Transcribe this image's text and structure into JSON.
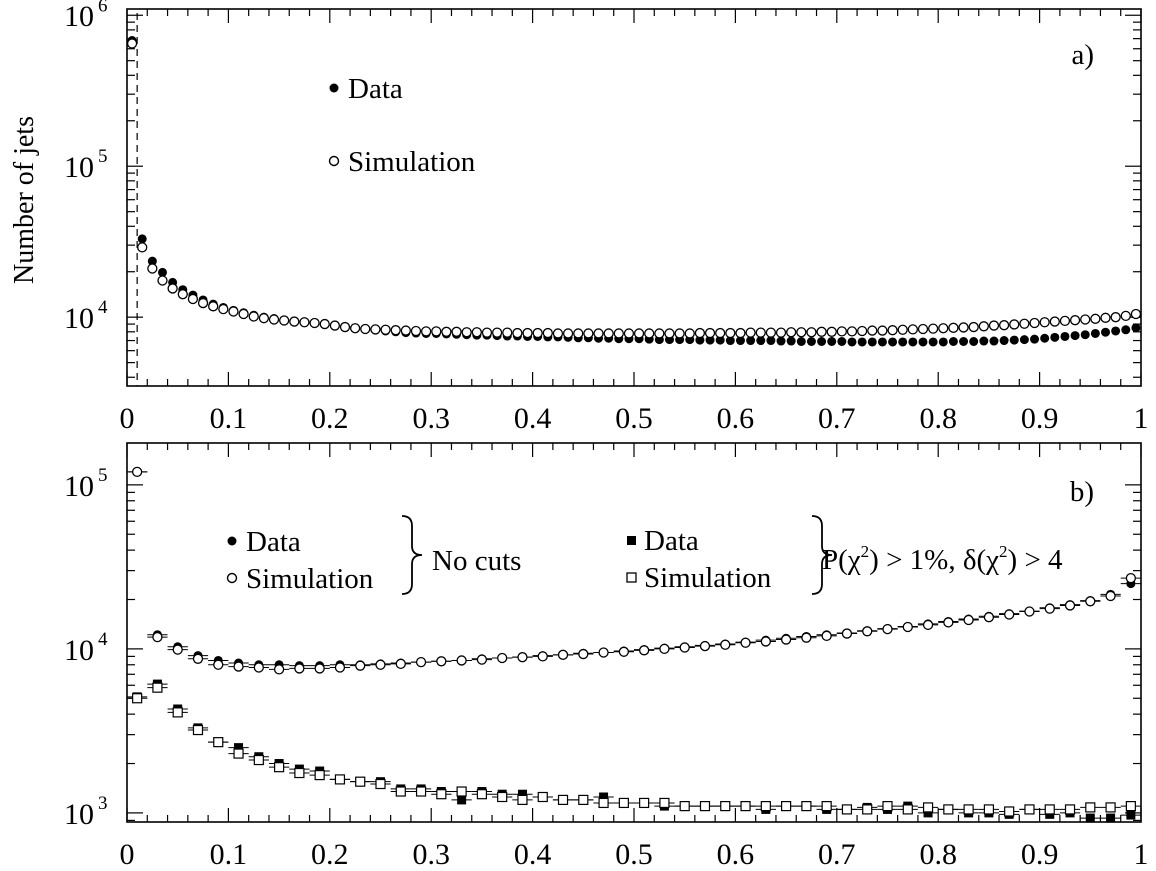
{
  "chart_data": [
    {
      "type": "scatter",
      "panel_label": "a)",
      "ylabel": "Number of jets",
      "xlabel": "",
      "xlim": [
        0,
        1
      ],
      "ylim": [
        3500,
        1100000
      ],
      "yscale": "log",
      "x_tick_labels": [
        "0",
        "0.1",
        "0.2",
        "0.3",
        "0.4",
        "0.5",
        "0.6",
        "0.7",
        "0.8",
        "0.9",
        "1"
      ],
      "y_tick_labels": [
        {
          "base": "10",
          "exp": "4",
          "value": 10000
        },
        {
          "base": "10",
          "exp": "5",
          "value": 100000
        },
        {
          "base": "10",
          "exp": "6",
          "value": 1000000
        }
      ],
      "cut_line_x": 0.01,
      "legend": [
        {
          "label": "Data",
          "marker": "filled-circle"
        },
        {
          "label": "Simulation",
          "marker": "open-circle"
        }
      ],
      "series": [
        {
          "name": "Data",
          "marker": "filled-circle",
          "x": [
            0.005,
            0.015,
            0.025,
            0.035,
            0.045,
            0.055,
            0.065,
            0.075,
            0.085,
            0.095,
            0.105,
            0.115,
            0.125,
            0.135,
            0.145,
            0.155,
            0.165,
            0.175,
            0.185,
            0.195,
            0.205,
            0.215,
            0.225,
            0.235,
            0.245,
            0.255,
            0.265,
            0.275,
            0.285,
            0.295,
            0.305,
            0.315,
            0.325,
            0.335,
            0.345,
            0.355,
            0.365,
            0.375,
            0.385,
            0.395,
            0.405,
            0.415,
            0.425,
            0.435,
            0.445,
            0.455,
            0.465,
            0.475,
            0.485,
            0.495,
            0.505,
            0.515,
            0.525,
            0.535,
            0.545,
            0.555,
            0.565,
            0.575,
            0.585,
            0.595,
            0.605,
            0.615,
            0.625,
            0.635,
            0.645,
            0.655,
            0.665,
            0.675,
            0.685,
            0.695,
            0.705,
            0.715,
            0.725,
            0.735,
            0.745,
            0.755,
            0.765,
            0.775,
            0.785,
            0.795,
            0.805,
            0.815,
            0.825,
            0.835,
            0.845,
            0.855,
            0.865,
            0.875,
            0.885,
            0.895,
            0.905,
            0.915,
            0.925,
            0.935,
            0.945,
            0.955,
            0.965,
            0.975,
            0.985,
            0.995
          ],
          "y": [
            680000,
            33000,
            23500,
            19800,
            17000,
            15200,
            14000,
            13000,
            12200,
            11600,
            11100,
            10700,
            10300,
            10000,
            9800,
            9600,
            9400,
            9300,
            9200,
            9100,
            8800,
            8600,
            8400,
            8300,
            8200,
            8100,
            8000,
            7900,
            7850,
            7800,
            7800,
            7750,
            7700,
            7650,
            7600,
            7600,
            7550,
            7500,
            7500,
            7450,
            7450,
            7400,
            7400,
            7350,
            7300,
            7300,
            7250,
            7250,
            7200,
            7200,
            7200,
            7150,
            7100,
            7100,
            7100,
            7100,
            7050,
            7050,
            7050,
            7000,
            7000,
            7000,
            7000,
            7000,
            6950,
            6950,
            6900,
            6900,
            6900,
            6900,
            6900,
            6850,
            6850,
            6850,
            6850,
            6850,
            6850,
            6850,
            6850,
            6850,
            6850,
            6900,
            6900,
            6900,
            6950,
            6950,
            7000,
            7050,
            7100,
            7150,
            7250,
            7350,
            7450,
            7550,
            7650,
            7800,
            7950,
            8100,
            8250,
            8500
          ]
        },
        {
          "name": "Simulation",
          "marker": "open-circle",
          "x": [
            0.005,
            0.015,
            0.025,
            0.035,
            0.045,
            0.055,
            0.065,
            0.075,
            0.085,
            0.095,
            0.105,
            0.115,
            0.125,
            0.135,
            0.145,
            0.155,
            0.165,
            0.175,
            0.185,
            0.195,
            0.205,
            0.215,
            0.225,
            0.235,
            0.245,
            0.255,
            0.265,
            0.275,
            0.285,
            0.295,
            0.305,
            0.315,
            0.325,
            0.335,
            0.345,
            0.355,
            0.365,
            0.375,
            0.385,
            0.395,
            0.405,
            0.415,
            0.425,
            0.435,
            0.445,
            0.455,
            0.465,
            0.475,
            0.485,
            0.495,
            0.505,
            0.515,
            0.525,
            0.535,
            0.545,
            0.555,
            0.565,
            0.575,
            0.585,
            0.595,
            0.605,
            0.615,
            0.625,
            0.635,
            0.645,
            0.655,
            0.665,
            0.675,
            0.685,
            0.695,
            0.705,
            0.715,
            0.725,
            0.735,
            0.745,
            0.755,
            0.765,
            0.775,
            0.785,
            0.795,
            0.805,
            0.815,
            0.825,
            0.835,
            0.845,
            0.855,
            0.865,
            0.875,
            0.885,
            0.895,
            0.905,
            0.915,
            0.925,
            0.935,
            0.945,
            0.955,
            0.965,
            0.975,
            0.985,
            0.995
          ],
          "y": [
            650000,
            29000,
            21000,
            17500,
            15500,
            14200,
            13200,
            12400,
            11800,
            11300,
            10900,
            10500,
            10100,
            9850,
            9650,
            9500,
            9350,
            9250,
            9150,
            9000,
            8800,
            8600,
            8450,
            8350,
            8300,
            8250,
            8200,
            8150,
            8100,
            8050,
            8050,
            8000,
            8000,
            7950,
            7950,
            7900,
            7900,
            7900,
            7850,
            7850,
            7850,
            7850,
            7800,
            7800,
            7800,
            7800,
            7800,
            7800,
            7800,
            7800,
            7800,
            7800,
            7800,
            7800,
            7800,
            7800,
            7850,
            7850,
            7850,
            7850,
            7850,
            7900,
            7900,
            7900,
            7900,
            7950,
            7950,
            7950,
            8000,
            8000,
            8050,
            8050,
            8100,
            8150,
            8150,
            8200,
            8250,
            8300,
            8350,
            8400,
            8450,
            8500,
            8550,
            8600,
            8700,
            8800,
            8850,
            8950,
            9050,
            9150,
            9250,
            9350,
            9450,
            9550,
            9650,
            9750,
            9900,
            10000,
            10200,
            10500
          ]
        }
      ]
    },
    {
      "type": "scatter",
      "panel_label": "b)",
      "xlabel": "",
      "ylabel": "",
      "xlim": [
        0,
        1
      ],
      "ylim": [
        880,
        180000
      ],
      "yscale": "log",
      "x_tick_labels": [
        "0",
        "0.1",
        "0.2",
        "0.3",
        "0.4",
        "0.5",
        "0.6",
        "0.7",
        "0.8",
        "0.9",
        "1"
      ],
      "y_tick_labels": [
        {
          "base": "10",
          "exp": "3",
          "value": 1000
        },
        {
          "base": "10",
          "exp": "4",
          "value": 10000
        },
        {
          "base": "10",
          "exp": "5",
          "value": 100000
        }
      ],
      "legend_groups": [
        {
          "entries": [
            {
              "label": "Data",
              "marker": "filled-circle"
            },
            {
              "label": "Simulation",
              "marker": "open-circle"
            }
          ],
          "group_label": "No cuts"
        },
        {
          "entries": [
            {
              "label": "Data",
              "marker": "filled-square"
            },
            {
              "label": "Simulation",
              "marker": "open-square"
            }
          ],
          "group_label": "P(χ²) > 1%, δ(χ²) > 4"
        }
      ],
      "group_label_parts": {
        "p": "P(",
        "chi": "χ",
        "sq": "2",
        "mid": ") > 1%, ",
        "delta": "δ(",
        "end": ") > 4"
      },
      "x_error_halfwidth": 0.01,
      "series": [
        {
          "name": "Data",
          "marker": "filled-circle",
          "x": [
            0.01,
            0.03,
            0.05,
            0.07,
            0.09,
            0.11,
            0.13,
            0.15,
            0.17,
            0.19,
            0.21,
            0.23,
            0.25,
            0.27,
            0.29,
            0.31,
            0.33,
            0.35,
            0.37,
            0.39,
            0.41,
            0.43,
            0.45,
            0.47,
            0.49,
            0.51,
            0.53,
            0.55,
            0.57,
            0.59,
            0.61,
            0.63,
            0.65,
            0.67,
            0.69,
            0.71,
            0.73,
            0.75,
            0.77,
            0.79,
            0.81,
            0.83,
            0.85,
            0.87,
            0.89,
            0.91,
            0.93,
            0.95,
            0.97,
            0.99
          ],
          "y": [
            120000,
            12200,
            10300,
            9100,
            8500,
            8200,
            8000,
            8000,
            7900,
            7900,
            8000,
            8000,
            8100,
            8200,
            8300,
            8400,
            8500,
            8700,
            8800,
            8900,
            9100,
            9200,
            9400,
            9500,
            9700,
            9900,
            10100,
            10300,
            10500,
            10700,
            11000,
            11300,
            11600,
            11900,
            12200,
            12500,
            12900,
            13300,
            13700,
            14200,
            14700,
            15200,
            15800,
            16400,
            17000,
            17800,
            18600,
            19700,
            21500,
            25000
          ]
        },
        {
          "name": "Simulation",
          "marker": "open-circle",
          "x": [
            0.01,
            0.03,
            0.05,
            0.07,
            0.09,
            0.11,
            0.13,
            0.15,
            0.17,
            0.19,
            0.21,
            0.23,
            0.25,
            0.27,
            0.29,
            0.31,
            0.33,
            0.35,
            0.37,
            0.39,
            0.41,
            0.43,
            0.45,
            0.47,
            0.49,
            0.51,
            0.53,
            0.55,
            0.57,
            0.59,
            0.61,
            0.63,
            0.65,
            0.67,
            0.69,
            0.71,
            0.73,
            0.75,
            0.77,
            0.79,
            0.81,
            0.83,
            0.85,
            0.87,
            0.89,
            0.91,
            0.93,
            0.95,
            0.97,
            0.99
          ],
          "y": [
            120000,
            11800,
            9900,
            8700,
            8000,
            7800,
            7700,
            7500,
            7600,
            7600,
            7700,
            7900,
            8000,
            8100,
            8300,
            8400,
            8500,
            8600,
            8800,
            8900,
            9000,
            9200,
            9300,
            9500,
            9600,
            9800,
            10000,
            10200,
            10400,
            10600,
            10900,
            11100,
            11400,
            11700,
            12000,
            12400,
            12800,
            13200,
            13600,
            14000,
            14500,
            15000,
            15600,
            16200,
            16900,
            17600,
            18400,
            19500,
            21000,
            27000
          ]
        },
        {
          "name": "Data",
          "marker": "filled-square",
          "x": [
            0.01,
            0.03,
            0.05,
            0.07,
            0.09,
            0.11,
            0.13,
            0.15,
            0.17,
            0.19,
            0.21,
            0.23,
            0.25,
            0.27,
            0.29,
            0.31,
            0.33,
            0.35,
            0.37,
            0.39,
            0.41,
            0.43,
            0.45,
            0.47,
            0.49,
            0.51,
            0.53,
            0.55,
            0.57,
            0.59,
            0.61,
            0.63,
            0.65,
            0.67,
            0.69,
            0.71,
            0.73,
            0.75,
            0.77,
            0.79,
            0.81,
            0.83,
            0.85,
            0.87,
            0.89,
            0.91,
            0.93,
            0.95,
            0.97,
            0.99
          ],
          "y": [
            5100,
            6100,
            4300,
            3300,
            2700,
            2500,
            2200,
            2000,
            1850,
            1800,
            1600,
            1550,
            1550,
            1400,
            1400,
            1350,
            1200,
            1350,
            1300,
            1300,
            1250,
            1200,
            1200,
            1250,
            1150,
            1150,
            1100,
            1100,
            1100,
            1100,
            1100,
            1050,
            1100,
            1100,
            1050,
            1050,
            1080,
            1050,
            1100,
            1000,
            1050,
            1000,
            1000,
            980,
            1050,
            980,
            1000,
            930,
            930,
            970
          ]
        },
        {
          "name": "Simulation",
          "marker": "open-square",
          "x": [
            0.01,
            0.03,
            0.05,
            0.07,
            0.09,
            0.11,
            0.13,
            0.15,
            0.17,
            0.19,
            0.21,
            0.23,
            0.25,
            0.27,
            0.29,
            0.31,
            0.33,
            0.35,
            0.37,
            0.39,
            0.41,
            0.43,
            0.45,
            0.47,
            0.49,
            0.51,
            0.53,
            0.55,
            0.57,
            0.59,
            0.61,
            0.63,
            0.65,
            0.67,
            0.69,
            0.71,
            0.73,
            0.75,
            0.77,
            0.79,
            0.81,
            0.83,
            0.85,
            0.87,
            0.89,
            0.91,
            0.93,
            0.95,
            0.97,
            0.99
          ],
          "y": [
            5000,
            5800,
            4100,
            3200,
            2700,
            2300,
            2100,
            1900,
            1750,
            1700,
            1600,
            1550,
            1500,
            1350,
            1350,
            1300,
            1350,
            1300,
            1250,
            1200,
            1250,
            1200,
            1200,
            1150,
            1150,
            1150,
            1150,
            1100,
            1100,
            1100,
            1100,
            1100,
            1100,
            1100,
            1100,
            1050,
            1050,
            1100,
            1050,
            1080,
            1050,
            1050,
            1050,
            1020,
            1050,
            1050,
            1050,
            1080,
            1080,
            1100
          ]
        }
      ]
    }
  ]
}
